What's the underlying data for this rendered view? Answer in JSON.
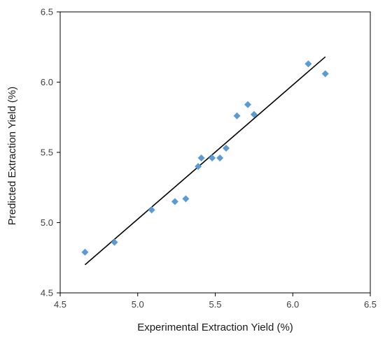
{
  "chart_data": {
    "type": "scatter",
    "xlabel": "Experimental Extraction Yield (%)",
    "ylabel": "Predicted Extraction Yield (%)",
    "xlim": [
      4.5,
      6.5
    ],
    "ylim": [
      4.5,
      6.5
    ],
    "x_ticks": [
      "4.5",
      "5.0",
      "5.5",
      "6.0",
      "6.5"
    ],
    "y_ticks": [
      "4.5",
      "5.0",
      "5.5",
      "6.0",
      "6.5"
    ],
    "grid": false,
    "legend": "none",
    "marker": "diamond",
    "marker_color": "#5B9BD5",
    "fit_line": {
      "color": "#000000",
      "x": [
        4.66,
        6.21
      ],
      "y": [
        4.7,
        6.18
      ]
    },
    "points": [
      {
        "x": 4.66,
        "y": 4.79
      },
      {
        "x": 4.85,
        "y": 4.86
      },
      {
        "x": 5.09,
        "y": 5.09
      },
      {
        "x": 5.24,
        "y": 5.15
      },
      {
        "x": 5.31,
        "y": 5.17
      },
      {
        "x": 5.39,
        "y": 5.4
      },
      {
        "x": 5.41,
        "y": 5.46
      },
      {
        "x": 5.48,
        "y": 5.46
      },
      {
        "x": 5.53,
        "y": 5.46
      },
      {
        "x": 5.57,
        "y": 5.53
      },
      {
        "x": 5.64,
        "y": 5.76
      },
      {
        "x": 5.71,
        "y": 5.84
      },
      {
        "x": 5.75,
        "y": 5.77
      },
      {
        "x": 6.1,
        "y": 6.13
      },
      {
        "x": 6.21,
        "y": 6.06
      }
    ]
  }
}
